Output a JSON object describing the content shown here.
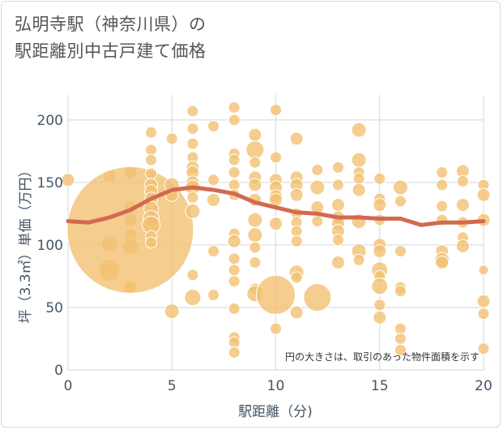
{
  "chart_data": {
    "type": "scatter",
    "title_lines": [
      "弘明寺駅（神奈川県）の",
      "駅距離別中古戸建て価格"
    ],
    "xlabel": "駅距離（分)",
    "ylabel": "坪（3.3㎡）単価（万円）",
    "note": "円の大きさは、取引のあった物件面積を示す",
    "xlim": [
      0,
      20
    ],
    "ylim": [
      0,
      220
    ],
    "x_ticks": [
      0,
      5,
      10,
      15,
      20
    ],
    "y_ticks": [
      0,
      50,
      100,
      150,
      200
    ],
    "grid": true,
    "bubble_color": "#f2c072",
    "line_color": "#d26a50",
    "points": [
      {
        "x": 0,
        "y": 152,
        "s": 8
      },
      {
        "x": 2,
        "y": 155,
        "s": 8
      },
      {
        "x": 2,
        "y": 101,
        "s": 10
      },
      {
        "x": 2,
        "y": 80,
        "s": 13
      },
      {
        "x": 3,
        "y": 158,
        "s": 8
      },
      {
        "x": 3,
        "y": 130,
        "s": 8
      },
      {
        "x": 3,
        "y": 120,
        "s": 8
      },
      {
        "x": 3,
        "y": 108,
        "s": 8
      },
      {
        "x": 3,
        "y": 99,
        "s": 10
      },
      {
        "x": 3,
        "y": 66,
        "s": 8
      },
      {
        "x": 3,
        "y": 112,
        "s": 78
      },
      {
        "x": 4,
        "y": 190,
        "s": 7
      },
      {
        "x": 4,
        "y": 176,
        "s": 7
      },
      {
        "x": 4,
        "y": 168,
        "s": 7
      },
      {
        "x": 4,
        "y": 157,
        "s": 7
      },
      {
        "x": 4,
        "y": 148,
        "s": 8
      },
      {
        "x": 4,
        "y": 143,
        "s": 8
      },
      {
        "x": 4,
        "y": 137,
        "s": 8
      },
      {
        "x": 4,
        "y": 129,
        "s": 9
      },
      {
        "x": 4,
        "y": 121,
        "s": 10
      },
      {
        "x": 4,
        "y": 116,
        "s": 11
      },
      {
        "x": 4,
        "y": 107,
        "s": 7
      },
      {
        "x": 4,
        "y": 102,
        "s": 7
      },
      {
        "x": 5,
        "y": 185,
        "s": 7
      },
      {
        "x": 5,
        "y": 148,
        "s": 9
      },
      {
        "x": 5,
        "y": 140,
        "s": 8
      },
      {
        "x": 5,
        "y": 47,
        "s": 9
      },
      {
        "x": 6,
        "y": 207,
        "s": 7
      },
      {
        "x": 6,
        "y": 193,
        "s": 7
      },
      {
        "x": 6,
        "y": 181,
        "s": 7
      },
      {
        "x": 6,
        "y": 170,
        "s": 7
      },
      {
        "x": 6,
        "y": 162,
        "s": 8
      },
      {
        "x": 6,
        "y": 158,
        "s": 8
      },
      {
        "x": 6,
        "y": 150,
        "s": 8
      },
      {
        "x": 6,
        "y": 146,
        "s": 9
      },
      {
        "x": 6,
        "y": 138,
        "s": 7
      },
      {
        "x": 6,
        "y": 127,
        "s": 9
      },
      {
        "x": 6,
        "y": 76,
        "s": 7
      },
      {
        "x": 6,
        "y": 58,
        "s": 10
      },
      {
        "x": 7,
        "y": 195,
        "s": 7
      },
      {
        "x": 7,
        "y": 152,
        "s": 7
      },
      {
        "x": 7,
        "y": 136,
        "s": 8
      },
      {
        "x": 7,
        "y": 95,
        "s": 7
      },
      {
        "x": 7,
        "y": 60,
        "s": 7
      },
      {
        "x": 8,
        "y": 210,
        "s": 7
      },
      {
        "x": 8,
        "y": 200,
        "s": 7
      },
      {
        "x": 8,
        "y": 173,
        "s": 7
      },
      {
        "x": 8,
        "y": 168,
        "s": 7
      },
      {
        "x": 8,
        "y": 158,
        "s": 7
      },
      {
        "x": 8,
        "y": 148,
        "s": 7
      },
      {
        "x": 8,
        "y": 140,
        "s": 7
      },
      {
        "x": 8,
        "y": 109,
        "s": 7
      },
      {
        "x": 8,
        "y": 103,
        "s": 8
      },
      {
        "x": 8,
        "y": 89,
        "s": 7
      },
      {
        "x": 8,
        "y": 80,
        "s": 7
      },
      {
        "x": 8,
        "y": 71,
        "s": 7
      },
      {
        "x": 8,
        "y": 49,
        "s": 7
      },
      {
        "x": 8,
        "y": 26,
        "s": 7
      },
      {
        "x": 8,
        "y": 22,
        "s": 7
      },
      {
        "x": 8,
        "y": 14,
        "s": 7
      },
      {
        "x": 9,
        "y": 188,
        "s": 8
      },
      {
        "x": 9,
        "y": 176,
        "s": 11
      },
      {
        "x": 9,
        "y": 166,
        "s": 7
      },
      {
        "x": 9,
        "y": 154,
        "s": 8
      },
      {
        "x": 9,
        "y": 148,
        "s": 8
      },
      {
        "x": 9,
        "y": 136,
        "s": 8
      },
      {
        "x": 9,
        "y": 120,
        "s": 9
      },
      {
        "x": 9,
        "y": 108,
        "s": 9
      },
      {
        "x": 9,
        "y": 98,
        "s": 7
      },
      {
        "x": 9,
        "y": 86,
        "s": 7
      },
      {
        "x": 9,
        "y": 65,
        "s": 7
      },
      {
        "x": 9,
        "y": 61,
        "s": 10
      },
      {
        "x": 10,
        "y": 208,
        "s": 7
      },
      {
        "x": 10,
        "y": 170,
        "s": 7
      },
      {
        "x": 10,
        "y": 152,
        "s": 8
      },
      {
        "x": 10,
        "y": 146,
        "s": 8
      },
      {
        "x": 10,
        "y": 139,
        "s": 8
      },
      {
        "x": 10,
        "y": 136,
        "s": 8
      },
      {
        "x": 10,
        "y": 117,
        "s": 8
      },
      {
        "x": 10,
        "y": 60,
        "s": 24
      },
      {
        "x": 10,
        "y": 33,
        "s": 7
      },
      {
        "x": 11,
        "y": 185,
        "s": 8
      },
      {
        "x": 11,
        "y": 154,
        "s": 8
      },
      {
        "x": 11,
        "y": 148,
        "s": 8
      },
      {
        "x": 11,
        "y": 140,
        "s": 8
      },
      {
        "x": 11,
        "y": 125,
        "s": 7
      },
      {
        "x": 11,
        "y": 118,
        "s": 7
      },
      {
        "x": 11,
        "y": 111,
        "s": 7
      },
      {
        "x": 11,
        "y": 103,
        "s": 7
      },
      {
        "x": 11,
        "y": 78,
        "s": 9
      },
      {
        "x": 11,
        "y": 74,
        "s": 7
      },
      {
        "x": 11,
        "y": 46,
        "s": 8
      },
      {
        "x": 12,
        "y": 160,
        "s": 7
      },
      {
        "x": 12,
        "y": 146,
        "s": 9
      },
      {
        "x": 12,
        "y": 130,
        "s": 8
      },
      {
        "x": 12,
        "y": 119,
        "s": 7
      },
      {
        "x": 12,
        "y": 58,
        "s": 17
      },
      {
        "x": 13,
        "y": 162,
        "s": 7
      },
      {
        "x": 13,
        "y": 148,
        "s": 7
      },
      {
        "x": 13,
        "y": 132,
        "s": 8
      },
      {
        "x": 13,
        "y": 122,
        "s": 8
      },
      {
        "x": 13,
        "y": 117,
        "s": 8
      },
      {
        "x": 13,
        "y": 111,
        "s": 8
      },
      {
        "x": 13,
        "y": 104,
        "s": 7
      },
      {
        "x": 13,
        "y": 86,
        "s": 8
      },
      {
        "x": 14,
        "y": 192,
        "s": 9
      },
      {
        "x": 14,
        "y": 168,
        "s": 9
      },
      {
        "x": 14,
        "y": 158,
        "s": 7
      },
      {
        "x": 14,
        "y": 153,
        "s": 7
      },
      {
        "x": 14,
        "y": 144,
        "s": 8
      },
      {
        "x": 14,
        "y": 119,
        "s": 9
      },
      {
        "x": 14,
        "y": 95,
        "s": 9
      },
      {
        "x": 14,
        "y": 88,
        "s": 7
      },
      {
        "x": 15,
        "y": 153,
        "s": 7
      },
      {
        "x": 15,
        "y": 137,
        "s": 7
      },
      {
        "x": 15,
        "y": 132,
        "s": 8
      },
      {
        "x": 15,
        "y": 120,
        "s": 7
      },
      {
        "x": 15,
        "y": 100,
        "s": 8
      },
      {
        "x": 15,
        "y": 95,
        "s": 8
      },
      {
        "x": 15,
        "y": 80,
        "s": 10
      },
      {
        "x": 15,
        "y": 75,
        "s": 7
      },
      {
        "x": 15,
        "y": 67,
        "s": 10
      },
      {
        "x": 15,
        "y": 52,
        "s": 7
      },
      {
        "x": 15,
        "y": 42,
        "s": 8
      },
      {
        "x": 16,
        "y": 146,
        "s": 9
      },
      {
        "x": 16,
        "y": 135,
        "s": 7
      },
      {
        "x": 16,
        "y": 95,
        "s": 7
      },
      {
        "x": 16,
        "y": 66,
        "s": 7
      },
      {
        "x": 16,
        "y": 63,
        "s": 7
      },
      {
        "x": 16,
        "y": 33,
        "s": 7
      },
      {
        "x": 16,
        "y": 25,
        "s": 7
      },
      {
        "x": 16,
        "y": 16,
        "s": 7
      },
      {
        "x": 18,
        "y": 158,
        "s": 7
      },
      {
        "x": 18,
        "y": 148,
        "s": 7
      },
      {
        "x": 18,
        "y": 131,
        "s": 7
      },
      {
        "x": 18,
        "y": 120,
        "s": 7
      },
      {
        "x": 18,
        "y": 95,
        "s": 8
      },
      {
        "x": 18,
        "y": 88,
        "s": 9
      },
      {
        "x": 18,
        "y": 86,
        "s": 8
      },
      {
        "x": 19,
        "y": 159,
        "s": 8
      },
      {
        "x": 19,
        "y": 151,
        "s": 7
      },
      {
        "x": 19,
        "y": 132,
        "s": 8
      },
      {
        "x": 19,
        "y": 118,
        "s": 7
      },
      {
        "x": 19,
        "y": 106,
        "s": 7
      },
      {
        "x": 19,
        "y": 99,
        "s": 8
      },
      {
        "x": 20,
        "y": 148,
        "s": 7
      },
      {
        "x": 20,
        "y": 140,
        "s": 8
      },
      {
        "x": 20,
        "y": 120,
        "s": 8
      },
      {
        "x": 20,
        "y": 80,
        "s": 6
      },
      {
        "x": 20,
        "y": 55,
        "s": 8
      },
      {
        "x": 20,
        "y": 45,
        "s": 7
      },
      {
        "x": 20,
        "y": 17,
        "s": 7
      }
    ],
    "trend": {
      "x": [
        0,
        1,
        2,
        3,
        4,
        5,
        6,
        7,
        8,
        9,
        10,
        11,
        12,
        13,
        14,
        15,
        16,
        17,
        18,
        19,
        20
      ],
      "y": [
        119,
        118,
        122,
        128,
        137,
        144,
        146,
        144,
        141,
        134,
        130,
        126,
        125,
        122,
        122,
        121,
        121,
        116,
        118,
        118,
        119
      ]
    }
  }
}
